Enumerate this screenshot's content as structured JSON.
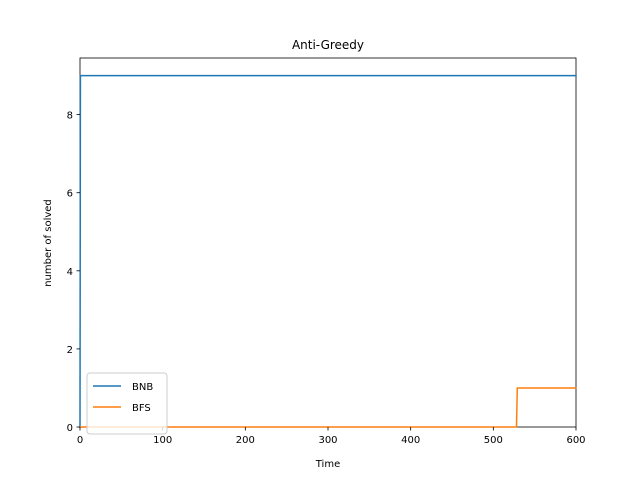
{
  "chart_data": {
    "type": "line",
    "title": "Anti-Greedy",
    "xlabel": "Time",
    "ylabel": "number of solved",
    "xlim": [
      0,
      600
    ],
    "ylim": [
      0,
      9.45
    ],
    "xticks": [
      0,
      100,
      200,
      300,
      400,
      500,
      600
    ],
    "yticks": [
      0,
      2,
      4,
      6,
      8
    ],
    "grid": false,
    "legend_position": "lower-left",
    "series": [
      {
        "name": "BNB",
        "color": "#1f77b4",
        "x": [
          0,
          0.5,
          600
        ],
        "y": [
          0,
          9,
          9
        ]
      },
      {
        "name": "BFS",
        "color": "#ff7f0e",
        "x": [
          0,
          528,
          529,
          600
        ],
        "y": [
          0,
          0,
          1,
          1
        ]
      }
    ]
  }
}
